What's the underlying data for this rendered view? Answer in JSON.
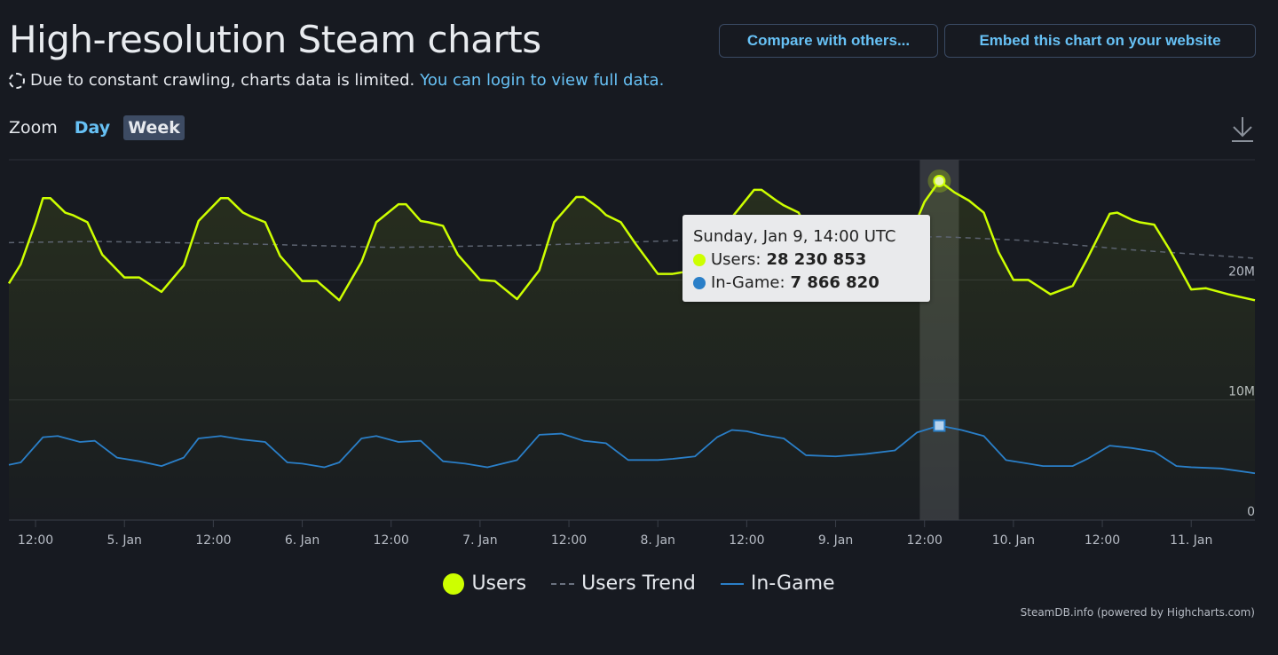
{
  "header": {
    "title": "High-resolution Steam charts",
    "compare_label": "Compare with others...",
    "embed_label": "Embed this chart on your website"
  },
  "notice": {
    "text": "Due to constant crawling, charts data is limited.",
    "link": "You can login to view full data."
  },
  "zoom": {
    "label": "Zoom",
    "options": [
      "Day",
      "Week"
    ],
    "selected": "Week"
  },
  "tooltip": {
    "date": "Sunday, Jan 9, 14:00 UTC",
    "users_label": "Users:",
    "users_value": "28 230 853",
    "ingame_label": "In-Game:",
    "ingame_value": "7 866 820"
  },
  "legend": {
    "users": "Users",
    "trend": "Users Trend",
    "ingame": "In-Game"
  },
  "credits": "SteamDB.info (powered by Highcharts.com)",
  "colors": {
    "users": "#cdff00",
    "ingame": "#2a7fc8",
    "trend": "#5c6370",
    "background": "#171a21",
    "link": "#67c1f5"
  },
  "chart_data": {
    "type": "line",
    "x_unit": "hours since Jan 4, 00:00 UTC",
    "xlim": [
      8.4,
      176.6
    ],
    "ylim": [
      0,
      30000000
    ],
    "y_ticks": [
      {
        "value": 0,
        "label": "0"
      },
      {
        "value": 10000000,
        "label": "10M"
      },
      {
        "value": 20000000,
        "label": "20M"
      }
    ],
    "x_ticks": [
      {
        "value": 12,
        "label": "12:00"
      },
      {
        "value": 24,
        "label": "5. Jan"
      },
      {
        "value": 36,
        "label": "12:00"
      },
      {
        "value": 48,
        "label": "6. Jan"
      },
      {
        "value": 60,
        "label": "12:00"
      },
      {
        "value": 72,
        "label": "7. Jan"
      },
      {
        "value": 84,
        "label": "12:00"
      },
      {
        "value": 96,
        "label": "8. Jan"
      },
      {
        "value": 108,
        "label": "12:00"
      },
      {
        "value": 120,
        "label": "9. Jan"
      },
      {
        "value": 132,
        "label": "12:00"
      },
      {
        "value": 144,
        "label": "10. Jan"
      },
      {
        "value": 156,
        "label": "12:00"
      },
      {
        "value": 168,
        "label": "11. Jan"
      }
    ],
    "highlight": {
      "x": 134,
      "users": 28230853,
      "ingame": 7866820
    },
    "series": [
      {
        "name": "Users",
        "x": [
          8.4,
          10,
          12,
          13,
          14,
          16,
          17,
          19,
          21,
          24,
          26,
          29,
          32,
          34,
          37,
          38,
          40,
          41,
          43,
          45,
          48,
          50,
          53,
          56,
          58,
          61,
          62,
          64,
          65,
          67,
          69,
          72,
          74,
          77,
          80,
          82,
          85,
          86,
          88,
          89,
          91,
          93,
          96,
          98,
          101,
          104,
          106,
          109,
          110,
          112,
          113,
          115,
          117,
          120,
          122,
          125,
          128,
          130,
          132,
          134,
          136,
          138,
          140,
          142,
          144,
          146,
          149,
          152,
          154,
          157,
          158,
          160,
          161,
          163,
          165,
          168,
          170,
          173,
          176.6
        ],
        "values": [
          19700000,
          21300000,
          24800000,
          26800000,
          26800000,
          25600000,
          25400000,
          24800000,
          22100000,
          20200000,
          20200000,
          19000000,
          21200000,
          24900000,
          26800000,
          26800000,
          25600000,
          25300000,
          24800000,
          22000000,
          19900000,
          19900000,
          18300000,
          21500000,
          24800000,
          26300000,
          26300000,
          24900000,
          24800000,
          24500000,
          22100000,
          20000000,
          19900000,
          18400000,
          20800000,
          24800000,
          26900000,
          26900000,
          26000000,
          25400000,
          24800000,
          23000000,
          20500000,
          20500000,
          20800000,
          22300000,
          25200000,
          27500000,
          27500000,
          26600000,
          26200000,
          25600000,
          23300000,
          20900000,
          20900000,
          20900000,
          21000000,
          23600000,
          26500000,
          28230853,
          27300000,
          26600000,
          25600000,
          22300000,
          20000000,
          20000000,
          18800000,
          19500000,
          21800000,
          25500000,
          25600000,
          25000000,
          24800000,
          24600000,
          22600000,
          19200000,
          19300000,
          18800000,
          18300000
        ]
      },
      {
        "name": "Users Trend",
        "x": [
          8.4,
          20,
          40,
          60,
          80,
          100,
          120,
          134,
          145,
          160,
          176.6
        ],
        "values": [
          23100000,
          23200000,
          23000000,
          22700000,
          22900000,
          23300000,
          23400000,
          23600000,
          23300000,
          22500000,
          21800000
        ]
      },
      {
        "name": "In-Game",
        "x": [
          8.4,
          10,
          13,
          15,
          18,
          20,
          23,
          26,
          29,
          32,
          34,
          37,
          40,
          43,
          46,
          48,
          51,
          53,
          56,
          58,
          61,
          64,
          67,
          70,
          73,
          77,
          80,
          83,
          86,
          89,
          92,
          96,
          98,
          101,
          104,
          106,
          108,
          110,
          113,
          116,
          120,
          124,
          128,
          131,
          134,
          137,
          140,
          143,
          146,
          148,
          152,
          154,
          157,
          160,
          163,
          166,
          168,
          172,
          176.6
        ],
        "values": [
          4600000,
          4800000,
          6900000,
          7000000,
          6500000,
          6600000,
          5200000,
          4900000,
          4500000,
          5200000,
          6800000,
          7000000,
          6700000,
          6500000,
          4800000,
          4700000,
          4400000,
          4800000,
          6800000,
          7000000,
          6500000,
          6600000,
          4900000,
          4700000,
          4400000,
          5000000,
          7100000,
          7200000,
          6600000,
          6400000,
          5000000,
          5000000,
          5100000,
          5300000,
          6900000,
          7500000,
          7400000,
          7100000,
          6800000,
          5400000,
          5300000,
          5500000,
          5800000,
          7300000,
          7866820,
          7500000,
          7000000,
          5000000,
          4700000,
          4500000,
          4500000,
          5100000,
          6200000,
          6000000,
          5700000,
          4500000,
          4400000,
          4300000,
          3900000
        ]
      }
    ]
  }
}
